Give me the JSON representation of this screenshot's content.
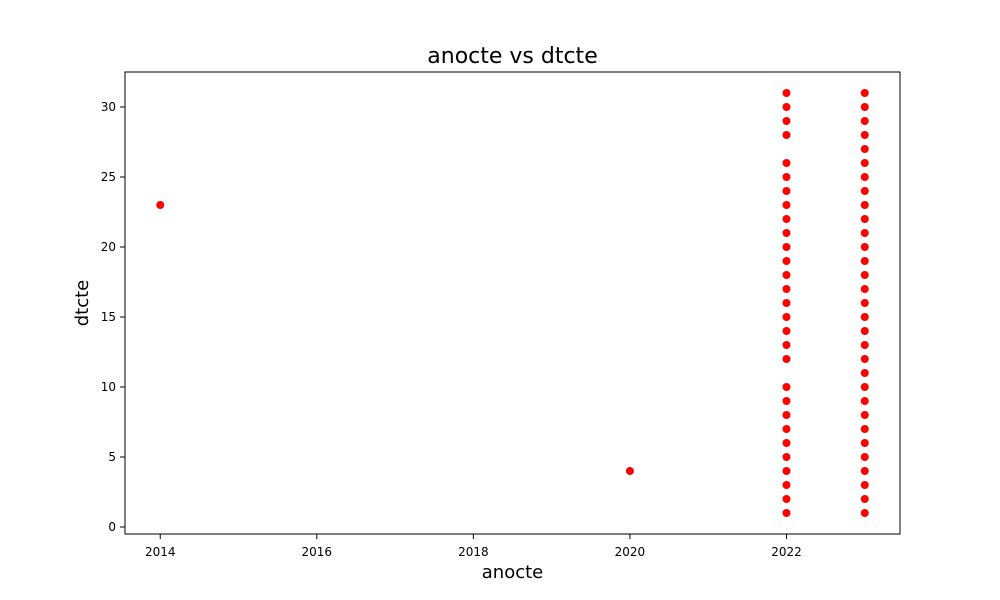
{
  "chart_data": {
    "type": "scatter",
    "title": "anocte vs dtcte",
    "xlabel": "anocte",
    "ylabel": "dtcte",
    "xlim": [
      2013.55,
      2023.45
    ],
    "ylim": [
      -0.5,
      32.5
    ],
    "xticks": [
      2014,
      2016,
      2018,
      2020,
      2022
    ],
    "yticks": [
      0,
      5,
      10,
      15,
      20,
      25,
      30
    ],
    "grid": false,
    "marker_color": "#ff0000",
    "series": [
      {
        "points": [
          [
            2014,
            23
          ],
          [
            2020,
            4
          ],
          [
            2022,
            1
          ],
          [
            2022,
            2
          ],
          [
            2022,
            3
          ],
          [
            2022,
            4
          ],
          [
            2022,
            5
          ],
          [
            2022,
            6
          ],
          [
            2022,
            7
          ],
          [
            2022,
            8
          ],
          [
            2022,
            9
          ],
          [
            2022,
            10
          ],
          [
            2022,
            12
          ],
          [
            2022,
            13
          ],
          [
            2022,
            14
          ],
          [
            2022,
            15
          ],
          [
            2022,
            16
          ],
          [
            2022,
            17
          ],
          [
            2022,
            18
          ],
          [
            2022,
            19
          ],
          [
            2022,
            20
          ],
          [
            2022,
            21
          ],
          [
            2022,
            22
          ],
          [
            2022,
            23
          ],
          [
            2022,
            24
          ],
          [
            2022,
            25
          ],
          [
            2022,
            26
          ],
          [
            2022,
            28
          ],
          [
            2022,
            29
          ],
          [
            2022,
            30
          ],
          [
            2022,
            31
          ],
          [
            2023,
            1
          ],
          [
            2023,
            2
          ],
          [
            2023,
            3
          ],
          [
            2023,
            4
          ],
          [
            2023,
            5
          ],
          [
            2023,
            6
          ],
          [
            2023,
            7
          ],
          [
            2023,
            8
          ],
          [
            2023,
            9
          ],
          [
            2023,
            10
          ],
          [
            2023,
            11
          ],
          [
            2023,
            12
          ],
          [
            2023,
            13
          ],
          [
            2023,
            14
          ],
          [
            2023,
            15
          ],
          [
            2023,
            16
          ],
          [
            2023,
            17
          ],
          [
            2023,
            18
          ],
          [
            2023,
            19
          ],
          [
            2023,
            20
          ],
          [
            2023,
            21
          ],
          [
            2023,
            22
          ],
          [
            2023,
            23
          ],
          [
            2023,
            24
          ],
          [
            2023,
            25
          ],
          [
            2023,
            26
          ],
          [
            2023,
            27
          ],
          [
            2023,
            28
          ],
          [
            2023,
            29
          ],
          [
            2023,
            30
          ],
          [
            2023,
            31
          ]
        ]
      }
    ]
  }
}
